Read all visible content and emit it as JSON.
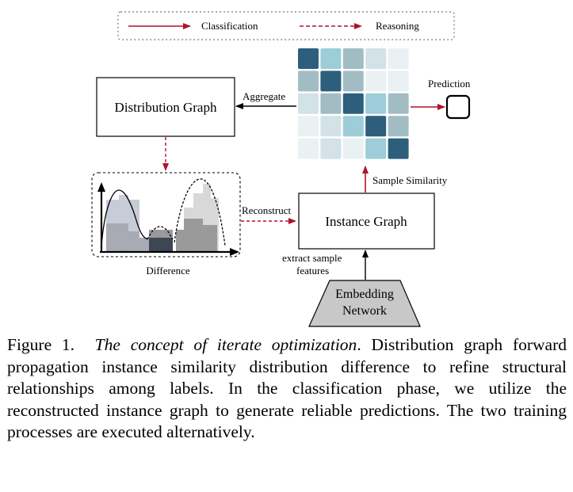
{
  "legend": {
    "classification": "Classification",
    "reasoning": "Reasoning"
  },
  "nodes": {
    "distribution_graph": "Distribution Graph",
    "instance_graph": "Instance Graph",
    "embedding_network_line1": "Embedding",
    "embedding_network_line2": "Network",
    "difference": "Difference"
  },
  "edges": {
    "aggregate": "Aggregate",
    "prediction": "Prediction",
    "sample_similarity": "Sample Similarity",
    "reconstruct": "Reconstruct",
    "extract_line1": "extract sample",
    "extract_line2": "features"
  },
  "colors": {
    "classification_arrow": "#b0122a",
    "reasoning_arrow": "#b0122a",
    "embedding_fill": "#c8c8c8",
    "matrix_palette": [
      "#2d5f7c",
      "#9ccdd8",
      "#a2bcc4",
      "#d2e2e6",
      "#eaf1f3"
    ]
  },
  "similarity_matrix": [
    [
      0,
      1,
      2,
      3,
      4
    ],
    [
      2,
      0,
      2,
      4,
      4
    ],
    [
      3,
      2,
      0,
      1,
      2
    ],
    [
      4,
      3,
      1,
      0,
      2
    ],
    [
      4,
      3,
      4,
      1,
      0
    ]
  ],
  "caption": {
    "label": "Figure 1.",
    "title": "The concept of iterate optimization",
    "body": ". Distribution graph forward propagation instance similarity distribution difference to refine structural relationships among labels. In the classification phase, we utilize the reconstructed instance graph to generate reliable predictions. The two training processes are executed alternatively."
  }
}
